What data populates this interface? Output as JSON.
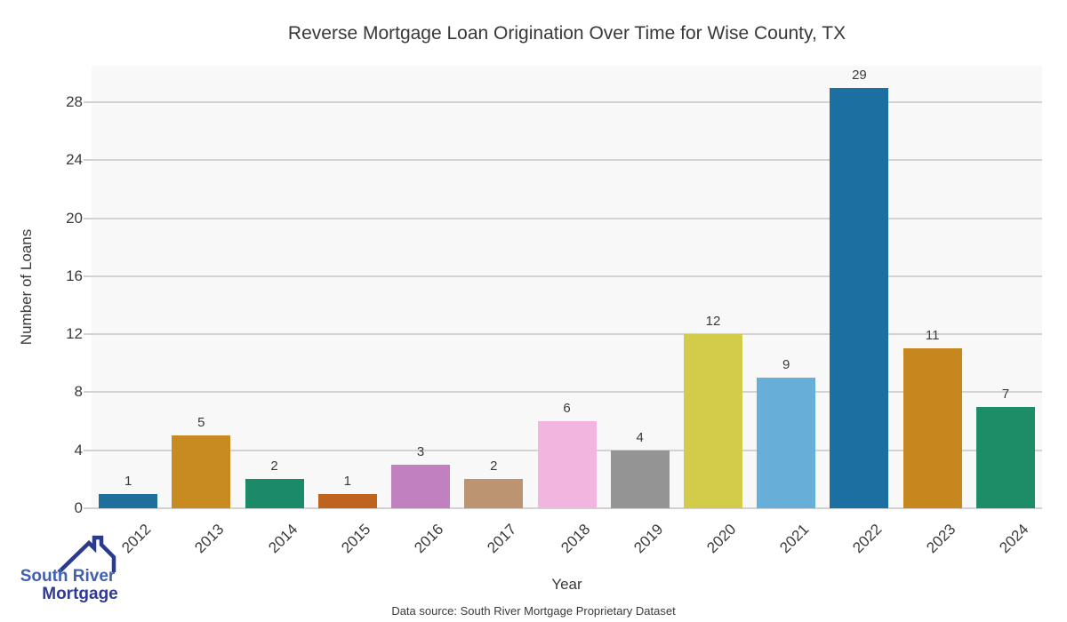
{
  "title": "Reverse Mortgage Loan Origination Over Time for Wise County, TX",
  "x_axis_label": "Year",
  "y_axis_label": "Number of Loans",
  "source_note": "Data source: South River Mortgage Proprietary Dataset",
  "logo": {
    "icon": "house-roof-icon",
    "line1": "South River",
    "line2": "Mortgage",
    "text_color_1": "#4161ae",
    "text_color_2": "#2e3a94",
    "roof_color": "#2b3a8f"
  },
  "chart_data": {
    "type": "bar",
    "title": "Reverse Mortgage Loan Origination Over Time for Wise County, TX",
    "xlabel": "Year",
    "ylabel": "Number of Loans",
    "categories": [
      "2012",
      "2013",
      "2014",
      "2015",
      "2016",
      "2017",
      "2018",
      "2019",
      "2020",
      "2021",
      "2022",
      "2023",
      "2024"
    ],
    "values": [
      1,
      5,
      2,
      1,
      3,
      2,
      6,
      4,
      12,
      9,
      29,
      11,
      7
    ],
    "bar_colors": [
      "#1f6e9c",
      "#c78b21",
      "#1b8a68",
      "#bf641f",
      "#c180bf",
      "#bd9471",
      "#f2b5df",
      "#949494",
      "#d3cb4a",
      "#67aed9",
      "#1c6fa1",
      "#c6871f",
      "#1d8d68"
    ],
    "yticks": [
      0,
      4,
      8,
      12,
      16,
      20,
      24,
      28
    ],
    "ylim": [
      0,
      30.5
    ],
    "grid": "horizontal",
    "legend": "none",
    "plot_background": "#f8f8f8",
    "grid_color": "#d2d2d2",
    "value_labels_shown": true
  }
}
